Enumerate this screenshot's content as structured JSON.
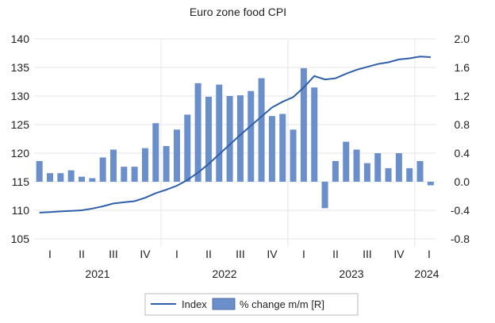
{
  "chart_data": {
    "type": "bar+line",
    "title": "Euro zone food CPI",
    "months": [
      "2021-01",
      "2021-02",
      "2021-03",
      "2021-04",
      "2021-05",
      "2021-06",
      "2021-07",
      "2021-08",
      "2021-09",
      "2021-10",
      "2021-11",
      "2021-12",
      "2022-01",
      "2022-02",
      "2022-03",
      "2022-04",
      "2022-05",
      "2022-06",
      "2022-07",
      "2022-08",
      "2022-09",
      "2022-10",
      "2022-11",
      "2022-12",
      "2023-01",
      "2023-02",
      "2023-03",
      "2023-04",
      "2023-05",
      "2023-06",
      "2023-07",
      "2023-08",
      "2023-09",
      "2023-10",
      "2023-11",
      "2023-12",
      "2024-01",
      "2024-02"
    ],
    "series": [
      {
        "name": "Index",
        "type": "line",
        "axis": "left",
        "color": "#2f5fa8",
        "values": [
          109.6,
          109.7,
          109.8,
          109.9,
          110.0,
          110.3,
          110.7,
          111.2,
          111.4,
          111.6,
          112.2,
          113.0,
          113.6,
          114.3,
          115.3,
          116.6,
          118.1,
          119.8,
          121.5,
          123.2,
          124.8,
          126.4,
          128.0,
          129.0,
          129.8,
          131.5,
          133.5,
          132.9,
          133.1,
          133.9,
          134.6,
          135.1,
          135.6,
          135.9,
          136.4,
          136.6,
          136.9,
          136.8
        ]
      },
      {
        "name": "% change m/m [R]",
        "type": "bar",
        "axis": "right",
        "color": "#6a8fcb",
        "values": [
          0.29,
          0.12,
          0.12,
          0.16,
          0.07,
          0.05,
          0.34,
          0.45,
          0.21,
          0.21,
          0.47,
          0.82,
          0.5,
          0.73,
          0.94,
          1.38,
          1.19,
          1.36,
          1.2,
          1.21,
          1.27,
          1.45,
          0.92,
          0.95,
          0.73,
          1.59,
          1.32,
          -0.37,
          0.29,
          0.56,
          0.45,
          0.26,
          0.4,
          0.19,
          0.4,
          0.19,
          0.29,
          -0.05
        ]
      }
    ],
    "left_axis": {
      "ylim": [
        105,
        140
      ],
      "ticks": [
        "105",
        "110",
        "115",
        "120",
        "125",
        "130",
        "135",
        "140"
      ]
    },
    "right_axis": {
      "ylim": [
        -0.8,
        2.0
      ],
      "ticks": [
        "-0.8",
        "-0.4",
        "0.0",
        "0.4",
        "0.8",
        "1.2",
        "1.6",
        "2.0"
      ]
    },
    "quarter_labels": [
      "I",
      "II",
      "III",
      "IV",
      "I",
      "II",
      "III",
      "IV",
      "I",
      "II",
      "III",
      "IV",
      "I"
    ],
    "year_labels": [
      "2021",
      "2022",
      "2023",
      "2024"
    ],
    "grid": true,
    "legend": {
      "placement": "bottom",
      "entries": [
        "Index",
        "% change m/m [R]"
      ]
    }
  }
}
